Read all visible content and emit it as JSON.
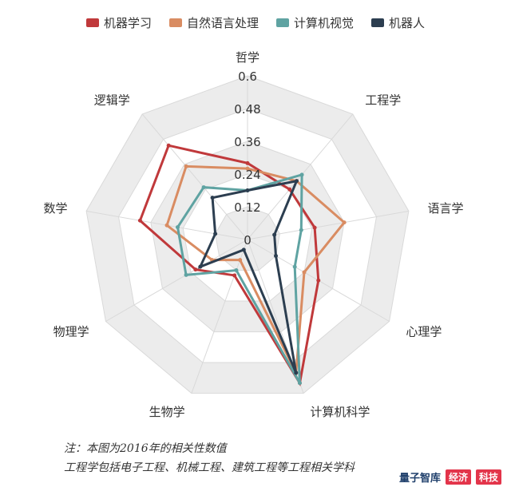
{
  "chart_data": {
    "type": "radar",
    "axes": [
      "哲学",
      "工程学",
      "语言学",
      "心理学",
      "计算机科学",
      "生物学",
      "物理学",
      "数学",
      "逻辑学"
    ],
    "rlim": [
      0,
      0.6
    ],
    "ticks": [
      "0",
      "0.12",
      "0.24",
      "0.36",
      "0.48",
      "0.6"
    ],
    "tick_values": [
      0,
      0.12,
      0.24,
      0.36,
      0.48,
      0.6
    ],
    "series": [
      {
        "name": "机器学习",
        "color": "#c0393b",
        "values": [
          0.28,
          0.24,
          0.25,
          0.3,
          0.56,
          0.14,
          0.22,
          0.4,
          0.45
        ]
      },
      {
        "name": "自然语言处理",
        "color": "#d98c62",
        "values": [
          0.26,
          0.28,
          0.36,
          0.24,
          0.52,
          0.08,
          0.15,
          0.3,
          0.35
        ]
      },
      {
        "name": "计算机视觉",
        "color": "#5fa3a2",
        "values": [
          0.18,
          0.31,
          0.2,
          0.2,
          0.56,
          0.12,
          0.26,
          0.26,
          0.25
        ]
      },
      {
        "name": "机器人",
        "color": "#2c3e50",
        "values": [
          0.18,
          0.28,
          0.1,
          0.12,
          0.52,
          0.04,
          0.2,
          0.12,
          0.2
        ]
      }
    ],
    "grid": true
  },
  "notes": {
    "line1": "注：本图为2016年的相关性数值",
    "line2": "工程学包括电子工程、机械工程、建筑工程等工程相关学科"
  },
  "watermark": {
    "logo": "量子智库",
    "badge1": "经济",
    "badge2": "科技"
  }
}
